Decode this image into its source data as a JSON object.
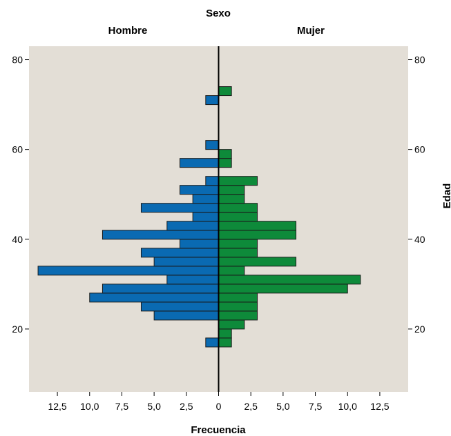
{
  "chart_data": {
    "type": "bar",
    "orientation": "horizontal-population-pyramid",
    "title": "Sexo",
    "xlabel": "Frecuencia",
    "ylabel": "Edad",
    "x_tick_labels": [
      "12,5",
      "10,0",
      "7,5",
      "5,0",
      "2,5",
      "0",
      "2,5",
      "5,0",
      "7,5",
      "10,0",
      "12,5"
    ],
    "x_tick_values": [
      -12.5,
      -10,
      -7.5,
      -5,
      -2.5,
      0,
      2.5,
      5,
      7.5,
      10,
      12.5
    ],
    "xlim": [
      -14.7,
      14.7
    ],
    "y_ticks": [
      20,
      40,
      60,
      80
    ],
    "ylim": [
      6,
      83
    ],
    "bin_width": 2,
    "background_color": "#e3ded6",
    "series": [
      {
        "name": "Hombre",
        "color": "#0a6ab2",
        "bins": [
          {
            "age": 16,
            "count": 1
          },
          {
            "age": 22,
            "count": 5
          },
          {
            "age": 24,
            "count": 6
          },
          {
            "age": 26,
            "count": 10
          },
          {
            "age": 28,
            "count": 9
          },
          {
            "age": 30,
            "count": 4
          },
          {
            "age": 32,
            "count": 14
          },
          {
            "age": 34,
            "count": 5
          },
          {
            "age": 36,
            "count": 6
          },
          {
            "age": 38,
            "count": 3
          },
          {
            "age": 40,
            "count": 9
          },
          {
            "age": 42,
            "count": 4
          },
          {
            "age": 44,
            "count": 2
          },
          {
            "age": 46,
            "count": 6
          },
          {
            "age": 48,
            "count": 2
          },
          {
            "age": 50,
            "count": 3
          },
          {
            "age": 52,
            "count": 1
          },
          {
            "age": 56,
            "count": 3
          },
          {
            "age": 60,
            "count": 1
          },
          {
            "age": 70,
            "count": 1
          }
        ]
      },
      {
        "name": "Mujer",
        "color": "#0e8a3a",
        "bins": [
          {
            "age": 16,
            "count": 1
          },
          {
            "age": 18,
            "count": 1
          },
          {
            "age": 20,
            "count": 2
          },
          {
            "age": 22,
            "count": 3
          },
          {
            "age": 24,
            "count": 3
          },
          {
            "age": 26,
            "count": 3
          },
          {
            "age": 28,
            "count": 10
          },
          {
            "age": 30,
            "count": 11
          },
          {
            "age": 32,
            "count": 2
          },
          {
            "age": 34,
            "count": 6
          },
          {
            "age": 36,
            "count": 3
          },
          {
            "age": 38,
            "count": 3
          },
          {
            "age": 40,
            "count": 6
          },
          {
            "age": 42,
            "count": 6
          },
          {
            "age": 44,
            "count": 3
          },
          {
            "age": 46,
            "count": 3
          },
          {
            "age": 48,
            "count": 2
          },
          {
            "age": 50,
            "count": 2
          },
          {
            "age": 52,
            "count": 3
          },
          {
            "age": 56,
            "count": 1
          },
          {
            "age": 58,
            "count": 1
          },
          {
            "age": 72,
            "count": 1
          }
        ]
      }
    ]
  }
}
